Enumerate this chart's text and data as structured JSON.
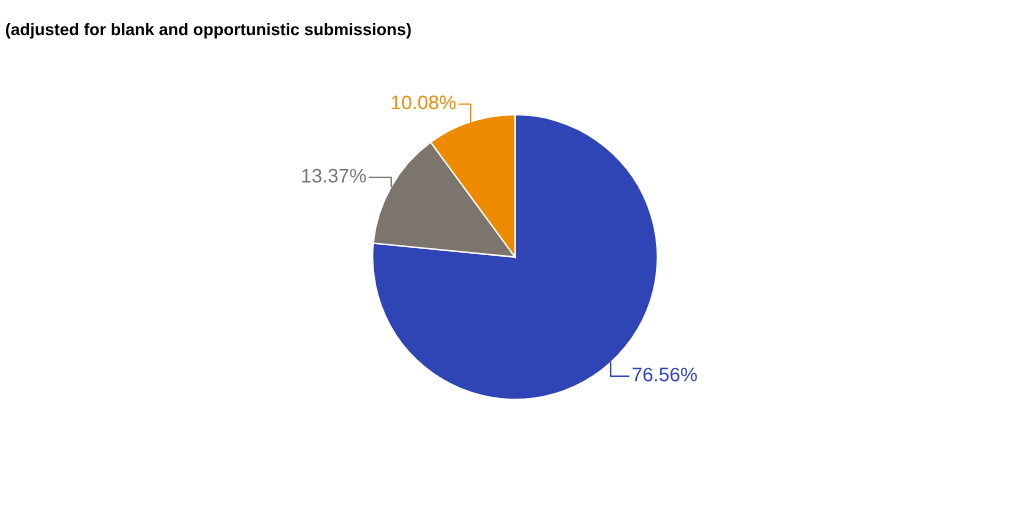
{
  "chart_data": {
    "type": "pie",
    "subtitle": "(adjusted for blank and opportunistic submissions)",
    "categories": [
      null,
      null,
      null
    ],
    "values": [
      76.56,
      13.37,
      10.08
    ],
    "colors": [
      "#2f45b5",
      "#7c756e",
      "#ee8a00"
    ],
    "value_labels": [
      "76.56%",
      "13.37%",
      "10.08%"
    ]
  }
}
